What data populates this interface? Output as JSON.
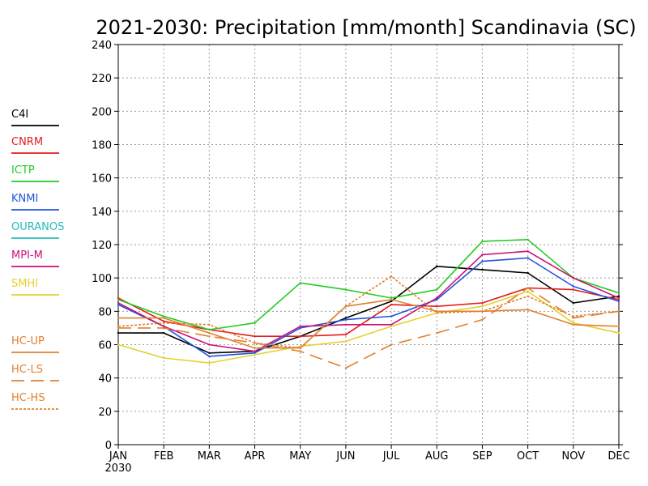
{
  "chart_data": {
    "type": "line",
    "title": "2021-2030: Precipitation [mm/month] Scandinavia (SC)",
    "xlabel": "",
    "ylabel": "",
    "x_year_label": "2030",
    "categories": [
      "JAN",
      "FEB",
      "MAR",
      "APR",
      "MAY",
      "JUN",
      "JUL",
      "AUG",
      "SEP",
      "OCT",
      "NOV",
      "DEC"
    ],
    "ylim": [
      0,
      240
    ],
    "yticks": [
      0,
      20,
      40,
      60,
      80,
      100,
      120,
      140,
      160,
      180,
      200,
      220,
      240
    ],
    "grid": true,
    "legend_position": "left",
    "series": [
      {
        "name": "C4I",
        "color": "#000000",
        "dash": "solid",
        "values": [
          67,
          67,
          55,
          56,
          65,
          76,
          86,
          107,
          105,
          103,
          85,
          89
        ]
      },
      {
        "name": "CNRM",
        "color": "#e31a1c",
        "dash": "solid",
        "values": [
          88,
          74,
          69,
          65,
          65,
          66,
          84,
          83,
          85,
          94,
          93,
          87
        ]
      },
      {
        "name": "ICTP",
        "color": "#22cc22",
        "dash": "solid",
        "values": [
          87,
          77,
          69,
          73,
          97,
          93,
          88,
          93,
          122,
          123,
          100,
          91
        ]
      },
      {
        "name": "KNMI",
        "color": "#2255dd",
        "dash": "solid",
        "values": [
          84,
          71,
          53,
          55,
          70,
          75,
          77,
          87,
          110,
          112,
          95,
          86
        ]
      },
      {
        "name": "OURANOS",
        "color": "#22bbbb",
        "dash": "solid",
        "values": [
          null,
          null,
          null,
          null,
          null,
          null,
          null,
          null,
          null,
          null,
          null,
          null
        ]
      },
      {
        "name": "MPI-M",
        "color": "#cc1177",
        "dash": "solid",
        "values": [
          85,
          71,
          60,
          56,
          71,
          72,
          72,
          88,
          114,
          116,
          100,
          88
        ]
      },
      {
        "name": "SMHI",
        "color": "#e6d030",
        "dash": "solid",
        "values": [
          60,
          52,
          49,
          54,
          59,
          62,
          71,
          79,
          83,
          92,
          73,
          67
        ]
      },
      {
        "name": "HC-UP",
        "color": "#e08030",
        "dash": "solid",
        "values": [
          76,
          76,
          67,
          58,
          58,
          83,
          87,
          80,
          80,
          81,
          72,
          71
        ]
      },
      {
        "name": "HC-LS",
        "color": "#e08030",
        "dash": "dashed",
        "values": [
          70,
          70,
          65,
          61,
          56,
          46,
          60,
          67,
          75,
          94,
          76,
          80
        ]
      },
      {
        "name": "HC-HS",
        "color": "#e08030",
        "dash": "dotted",
        "values": [
          71,
          73,
          72,
          61,
          58,
          83,
          101,
          79,
          80,
          89,
          77,
          80
        ]
      }
    ]
  }
}
